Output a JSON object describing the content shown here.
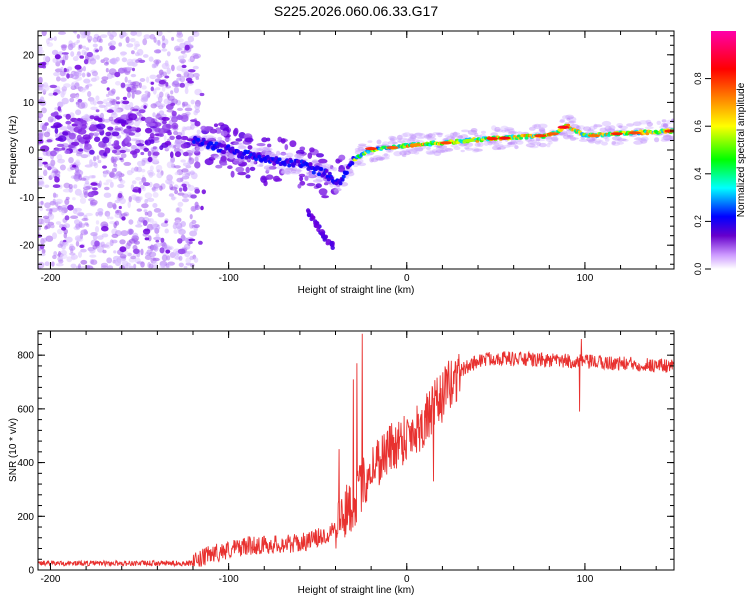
{
  "title": "S225.2026.060.06.33.G17",
  "chart_data": [
    {
      "type": "heatmap",
      "xlabel": "Height of straight line (km)",
      "ylabel": "Frequency (Hz)",
      "xlim": [
        -207,
        150
      ],
      "ylim": [
        -25,
        25
      ],
      "xticks": [
        -200,
        -100,
        0,
        100
      ],
      "xtick_labels": [
        "-200",
        "-100",
        "0",
        "100"
      ],
      "yticks": [
        -20,
        -10,
        0,
        10,
        20
      ],
      "ytick_labels": [
        "-20",
        "-10",
        "0",
        "10",
        "20"
      ],
      "colorbar": {
        "label": "Normalized spectral amplitude",
        "range": [
          0,
          1
        ],
        "ticks": [
          0.0,
          0.2,
          0.4,
          0.6,
          0.8
        ],
        "tick_labels": [
          "0.0",
          "0.2",
          "0.4",
          "0.6",
          "0.8"
        ],
        "colormap": [
          "#ffffff",
          "#cc99ff",
          "#6600cc",
          "#0000ff",
          "#00ffff",
          "#00ff00",
          "#ffff00",
          "#ff8000",
          "#ff0000",
          "#ff00aa"
        ]
      },
      "ridge": {
        "x_km": [
          -120,
          -100,
          -80,
          -60,
          -45,
          -38,
          -30,
          -20,
          -10,
          0,
          20,
          50,
          80,
          90,
          100,
          120,
          150
        ],
        "freq_hz": [
          2,
          0,
          -2,
          -3,
          -5,
          -7,
          -2,
          0,
          0.5,
          1,
          1.5,
          2.5,
          3,
          5,
          3,
          3.5,
          4
        ]
      },
      "spur": {
        "x_km": [
          -55,
          -50,
          -45,
          -42
        ],
        "freq_hz": [
          -13,
          -16,
          -19,
          -20
        ]
      }
    },
    {
      "type": "line",
      "xlabel": "Height of straight line (km)",
      "ylabel": "SNR (10 * v/v)",
      "xlim": [
        -207,
        150
      ],
      "ylim": [
        0,
        890
      ],
      "xticks": [
        -200,
        -100,
        0,
        100
      ],
      "xtick_labels": [
        "-200",
        "-100",
        "0",
        "100"
      ],
      "yticks": [
        0,
        200,
        400,
        600,
        800
      ],
      "ytick_labels": [
        "0",
        "200",
        "400",
        "600",
        "800"
      ],
      "color": "#e8312f",
      "trend": {
        "x": [
          -207,
          -120,
          -110,
          -90,
          -60,
          -45,
          -30,
          -20,
          -10,
          0,
          10,
          20,
          30,
          40,
          50,
          80,
          100,
          150
        ],
        "y": [
          25,
          25,
          60,
          90,
          100,
          130,
          250,
          380,
          450,
          500,
          550,
          650,
          740,
          780,
          790,
          780,
          775,
          760
        ]
      },
      "spikes": [
        {
          "x": -25,
          "y": 880
        },
        {
          "x": -28,
          "y": 770
        },
        {
          "x": -30,
          "y": 710
        },
        {
          "x": -38,
          "y": 450
        },
        {
          "x": 15,
          "y": 330
        },
        {
          "x": 98,
          "y": 860
        },
        {
          "x": 97,
          "y": 590
        }
      ]
    }
  ]
}
